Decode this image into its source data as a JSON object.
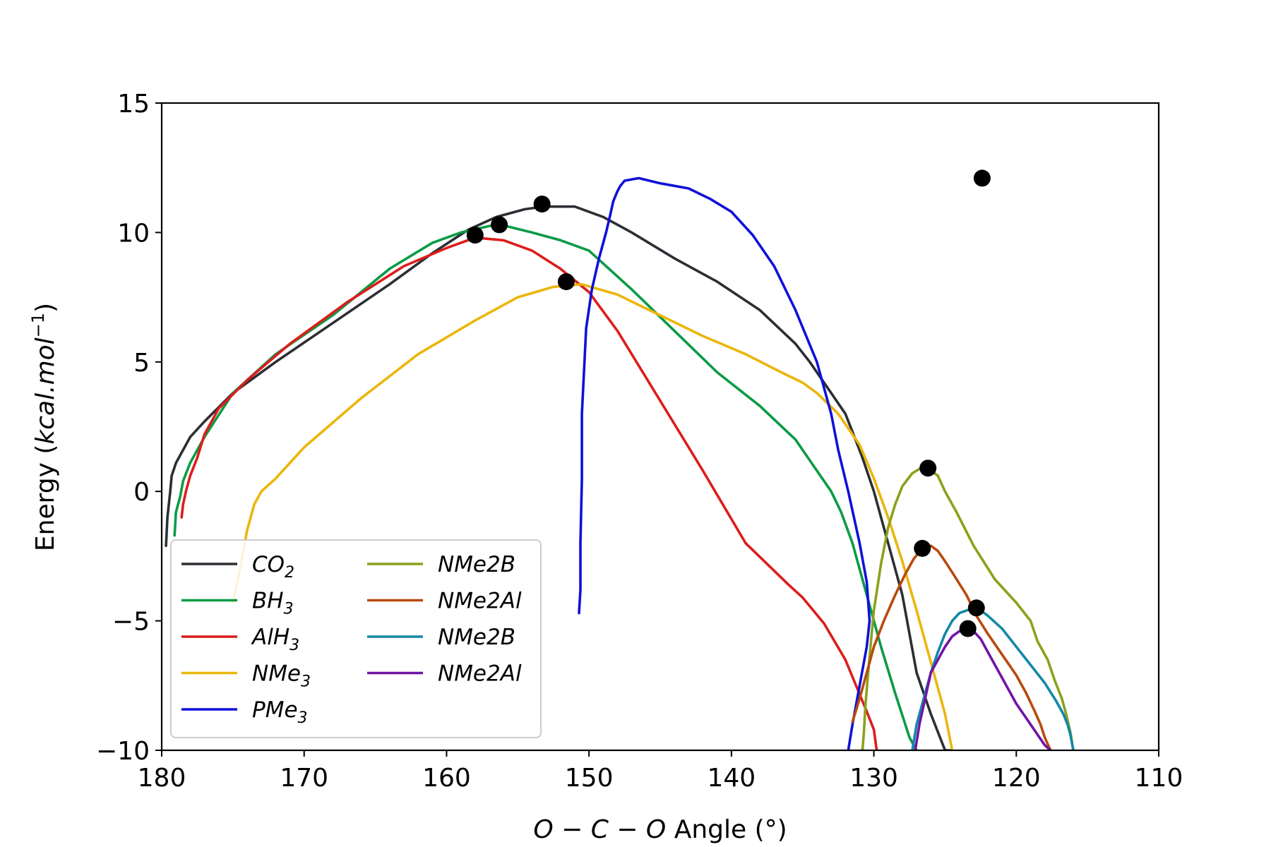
{
  "chart_data": {
    "type": "line",
    "title": "",
    "xlabel_parts": {
      "o1": "O",
      "m1": " − ",
      "c": "C",
      "m2": " − ",
      "o2": "O",
      "rest": " Angle (°)"
    },
    "ylabel_parts": {
      "main": "Energy (",
      "unit": "kcal.mol",
      "exp": "−1",
      "close": ")"
    },
    "xlim": [
      180,
      110
    ],
    "ylim": [
      -10,
      15
    ],
    "x_ticks": [
      180,
      170,
      160,
      150,
      140,
      130,
      120,
      110
    ],
    "y_ticks": [
      15,
      10,
      5,
      0,
      -5,
      -10
    ],
    "x_tick_labels": [
      "180",
      "170",
      "160",
      "150",
      "140",
      "130",
      "120",
      "110"
    ],
    "y_tick_labels": [
      "15",
      "10",
      "5",
      "0",
      "−5",
      "−10"
    ],
    "grid": false,
    "legend_position": "lower-left",
    "series": [
      {
        "name": "CO2",
        "label_base": "CO",
        "label_sub": "2",
        "color": "#2b2f33",
        "x": [
          179.7,
          179.6,
          179.4,
          179.3,
          179.0,
          178.5,
          178.0,
          177.0,
          175.0,
          172.0,
          168.0,
          164.0,
          161.0,
          158.5,
          156.5,
          154.5,
          153.2,
          151.0,
          149.0,
          147.0,
          144.0,
          141.0,
          138.0,
          135.5,
          134.5,
          133.0,
          132.0,
          131.5,
          130.8,
          130.0,
          129.5,
          128.8,
          128.0,
          127.5,
          127.0,
          126.0,
          125.0,
          124.5
        ],
        "y": [
          -2.1,
          -1.0,
          0.0,
          0.6,
          1.1,
          1.6,
          2.1,
          2.7,
          3.8,
          5.0,
          6.5,
          8.0,
          9.2,
          10.1,
          10.6,
          10.9,
          11.0,
          11.0,
          10.6,
          10.0,
          9.0,
          8.1,
          7.0,
          5.7,
          5.0,
          3.8,
          3.0,
          2.3,
          1.3,
          0.0,
          -1.0,
          -2.4,
          -4.0,
          -5.5,
          -7.0,
          -8.6,
          -10.0,
          -10.0
        ]
      },
      {
        "name": "BH3",
        "label_base": "BH",
        "label_sub": "3",
        "color": "#0a9b45",
        "x": [
          179.1,
          179.0,
          178.7,
          178.5,
          178.0,
          177.0,
          175.0,
          172.0,
          168.0,
          164.0,
          161.0,
          159.0,
          157.0,
          156.2,
          154.0,
          152.0,
          150.0,
          147.0,
          144.0,
          141.0,
          138.0,
          135.5,
          134.0,
          133.0,
          132.3,
          131.5,
          130.5,
          129.5,
          128.5,
          127.5,
          127.0
        ],
        "y": [
          -1.7,
          -0.8,
          -0.2,
          0.4,
          1.1,
          2.1,
          3.8,
          5.3,
          6.8,
          8.6,
          9.6,
          10.0,
          10.25,
          10.3,
          10.0,
          9.7,
          9.3,
          7.8,
          6.2,
          4.6,
          3.3,
          2.0,
          0.8,
          0.0,
          -0.8,
          -2.0,
          -4.0,
          -6.0,
          -7.8,
          -9.5,
          -10.0
        ]
      },
      {
        "name": "AlH3",
        "label_base": "AlH",
        "label_sub": "3",
        "color": "#dc1d1c",
        "x": [
          178.6,
          178.5,
          178.3,
          178.0,
          177.5,
          177.0,
          176.0,
          174.0,
          171.0,
          167.0,
          163.0,
          160.0,
          158.0,
          156.0,
          154.0,
          152.0,
          150.0,
          148.0,
          145.0,
          142.0,
          139.0,
          136.0,
          135.0,
          133.5,
          132.0,
          130.5,
          130.0,
          129.8
        ],
        "y": [
          -1.0,
          -0.5,
          0.0,
          0.6,
          1.3,
          2.2,
          3.2,
          4.3,
          5.7,
          7.3,
          8.7,
          9.4,
          9.8,
          9.7,
          9.3,
          8.6,
          7.7,
          6.2,
          3.5,
          0.8,
          -2.0,
          -3.6,
          -4.1,
          -5.1,
          -6.5,
          -8.5,
          -9.2,
          -10.0
        ]
      },
      {
        "name": "NMe3",
        "label_base": "NMe",
        "label_sub": "3",
        "color": "#ebb60b",
        "x": [
          175.0,
          174.5,
          174.0,
          173.5,
          173.0,
          172.0,
          170.0,
          166.0,
          162.0,
          158.0,
          155.0,
          152.5,
          150.5,
          148.0,
          145.0,
          142.0,
          139.0,
          136.5,
          135.0,
          134.0,
          132.5,
          131.0,
          130.0,
          129.0,
          128.0,
          127.0,
          126.0,
          125.0,
          124.5
        ],
        "y": [
          -4.3,
          -3.0,
          -1.5,
          -0.5,
          0.0,
          0.5,
          1.7,
          3.6,
          5.3,
          6.6,
          7.5,
          7.9,
          8.0,
          7.6,
          6.8,
          6.0,
          5.3,
          4.6,
          4.2,
          3.8,
          3.0,
          1.8,
          0.5,
          -1.0,
          -2.7,
          -4.6,
          -6.6,
          -8.6,
          -10.0
        ]
      },
      {
        "name": "PMe3",
        "label_base": "PMe",
        "label_sub": "3",
        "color": "#1010d9",
        "x": [
          131.8,
          131.5,
          131.0,
          130.5,
          130.3,
          130.5,
          131.0,
          131.8,
          132.5,
          133.0,
          134.0,
          135.5,
          137.0,
          138.5,
          140.0,
          141.5,
          143.0,
          145.0,
          146.5,
          147.5,
          147.8,
          148.0,
          148.3,
          148.5,
          148.8,
          149.3,
          149.8,
          150.2,
          150.5,
          150.5,
          150.6,
          150.6,
          150.7
        ],
        "y": [
          -10.0,
          -9.0,
          -7.5,
          -6.0,
          -5.0,
          -3.5,
          -2.0,
          0.0,
          1.6,
          3.0,
          5.0,
          7.0,
          8.7,
          9.9,
          10.8,
          11.3,
          11.7,
          11.9,
          12.1,
          12.0,
          11.8,
          11.6,
          11.2,
          10.7,
          10.0,
          9.0,
          7.8,
          6.3,
          3.0,
          0.5,
          -2.0,
          -3.8,
          -4.7
        ]
      },
      {
        "name": "NMe2B",
        "label_base": "NMe2B",
        "label_sub": "",
        "color": "#8aa21b",
        "x": [
          130.8,
          130.7,
          130.6,
          130.4,
          130.2,
          130.0,
          129.5,
          129.0,
          128.5,
          128.0,
          127.3,
          126.7,
          126.2,
          125.5,
          125.0,
          124.2,
          123.0,
          121.5,
          120.0,
          119.0,
          118.5,
          117.8,
          117.3,
          116.8,
          116.5,
          116.2,
          116.0
        ],
        "y": [
          -10.0,
          -9.3,
          -8.3,
          -7.0,
          -5.8,
          -4.6,
          -2.8,
          -1.4,
          -0.5,
          0.2,
          0.7,
          0.9,
          0.9,
          0.6,
          0.0,
          -0.8,
          -2.1,
          -3.4,
          -4.3,
          -5.0,
          -5.8,
          -6.5,
          -7.3,
          -8.0,
          -8.6,
          -9.3,
          -10.0
        ]
      },
      {
        "name": "NMe2Al",
        "label_base": "NMe2Al",
        "label_sub": "",
        "color": "#b84a0d",
        "x": [
          131.5,
          131.0,
          130.5,
          130.0,
          129.3,
          128.5,
          127.8,
          127.2,
          126.6,
          126.0,
          125.5,
          125.0,
          124.3,
          123.5,
          122.8,
          122.0,
          121.0,
          120.0,
          119.3,
          118.7,
          118.3,
          118.0,
          117.6
        ],
        "y": [
          -8.9,
          -8.0,
          -7.0,
          -6.0,
          -5.0,
          -4.0,
          -3.2,
          -2.6,
          -2.2,
          -2.1,
          -2.3,
          -2.7,
          -3.3,
          -4.0,
          -4.8,
          -5.5,
          -6.3,
          -7.1,
          -7.8,
          -8.5,
          -9.0,
          -9.5,
          -10.0
        ]
      },
      {
        "name": "NMe2B",
        "label_base": "NMe2B",
        "label_sub": "",
        "color": "#1289a6",
        "x": [
          127.3,
          127.0,
          126.5,
          126.0,
          125.5,
          125.0,
          124.5,
          124.0,
          123.5,
          123.0,
          122.5,
          122.0,
          121.0,
          120.0,
          119.0,
          118.0,
          117.2,
          116.7,
          116.4,
          116.2,
          116.1,
          116.0
        ],
        "y": [
          -10.0,
          -9.0,
          -8.0,
          -7.0,
          -6.2,
          -5.5,
          -5.0,
          -4.7,
          -4.6,
          -4.5,
          -4.6,
          -4.8,
          -5.3,
          -6.0,
          -6.7,
          -7.4,
          -8.1,
          -8.6,
          -9.0,
          -9.4,
          -9.7,
          -10.0
        ]
      },
      {
        "name": "NMe2Al",
        "label_base": "NMe2Al",
        "label_sub": "",
        "color": "#7115a6",
        "x": [
          127.1,
          126.8,
          126.4,
          126.0,
          125.5,
          125.0,
          124.5,
          124.0,
          123.5,
          123.0,
          122.5,
          122.0,
          121.5,
          121.0,
          120.5,
          120.0,
          119.5,
          119.0,
          118.5,
          118.0,
          117.6
        ],
        "y": [
          -10.0,
          -9.0,
          -8.0,
          -7.0,
          -6.5,
          -6.0,
          -5.6,
          -5.4,
          -5.3,
          -5.4,
          -5.7,
          -6.2,
          -6.7,
          -7.2,
          -7.7,
          -8.2,
          -8.6,
          -9.0,
          -9.4,
          -9.8,
          -10.0
        ]
      }
    ],
    "markers": {
      "color": "#000000",
      "points": [
        {
          "x": 153.3,
          "y": 11.1
        },
        {
          "x": 156.3,
          "y": 10.3
        },
        {
          "x": 158.0,
          "y": 9.9
        },
        {
          "x": 151.6,
          "y": 8.1
        },
        {
          "x": 122.4,
          "y": 12.1
        },
        {
          "x": 126.2,
          "y": 0.9
        },
        {
          "x": 126.6,
          "y": -2.2
        },
        {
          "x": 122.8,
          "y": -4.5
        },
        {
          "x": 123.4,
          "y": -5.3
        }
      ]
    }
  }
}
